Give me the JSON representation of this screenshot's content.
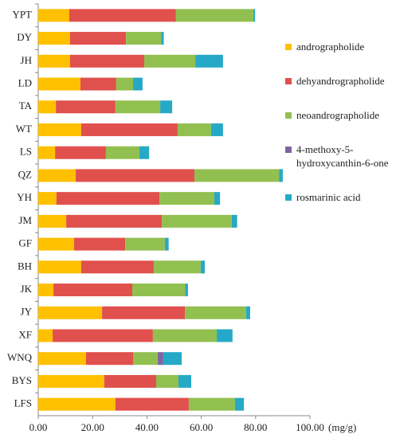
{
  "chart_data": {
    "type": "stacked-barh",
    "xlabel": "(mg/g)",
    "categories": [
      "YPT",
      "DY",
      "JH",
      "LD",
      "TA",
      "WT",
      "LS",
      "QZ",
      "YH",
      "JM",
      "GF",
      "BH",
      "JK",
      "JY",
      "XF",
      "WNQ",
      "BYS",
      "LFS"
    ],
    "series": [
      {
        "name": "andrographolide",
        "color": "#ffc000",
        "values": [
          11.4,
          11.7,
          11.7,
          15.5,
          6.5,
          15.8,
          6.2,
          13.8,
          6.7,
          10.3,
          13.2,
          15.8,
          5.6,
          23.5,
          5.3,
          17.6,
          24.3,
          28.4
        ]
      },
      {
        "name": "dehyandrographolide",
        "color": "#e0504d",
        "values": [
          39.3,
          20.6,
          27.3,
          13.2,
          21.9,
          35.5,
          18.7,
          43.7,
          37.9,
          35.2,
          18.8,
          26.7,
          29.0,
          30.5,
          36.9,
          17.3,
          19.1,
          27.0
        ]
      },
      {
        "name": "neoandrographolide",
        "color": "#92c050",
        "values": [
          28.5,
          12.9,
          18.8,
          6.2,
          16.5,
          12.3,
          12.3,
          31.1,
          20.2,
          25.7,
          14.6,
          17.3,
          19.5,
          22.5,
          23.5,
          9.1,
          8.2,
          17.0
        ]
      },
      {
        "name": "4-methoxy-5-hydroxycanthin-6-one",
        "color": "#8064a2",
        "values": [
          0,
          0.2,
          0,
          0,
          0,
          0,
          0,
          0,
          0,
          0,
          0,
          0,
          0,
          0,
          0,
          2.0,
          0,
          0
        ]
      },
      {
        "name": "rosmarinic acid",
        "color": "#26a9c6",
        "values": [
          0.6,
          0.8,
          10.2,
          3.5,
          4.4,
          4.4,
          3.6,
          1.4,
          2.1,
          2.0,
          1.4,
          1.5,
          1.0,
          1.5,
          5.8,
          6.8,
          4.7,
          3.3
        ]
      }
    ],
    "xlim": [
      0,
      100
    ],
    "xticks": [
      {
        "value": 0,
        "label": "0.00"
      },
      {
        "value": 20,
        "label": "20.00"
      },
      {
        "value": 40,
        "label": "40.00"
      },
      {
        "value": 60,
        "label": "60.00"
      },
      {
        "value": 80,
        "label": "80.00"
      },
      {
        "value": 100,
        "label": "100.00"
      }
    ]
  }
}
